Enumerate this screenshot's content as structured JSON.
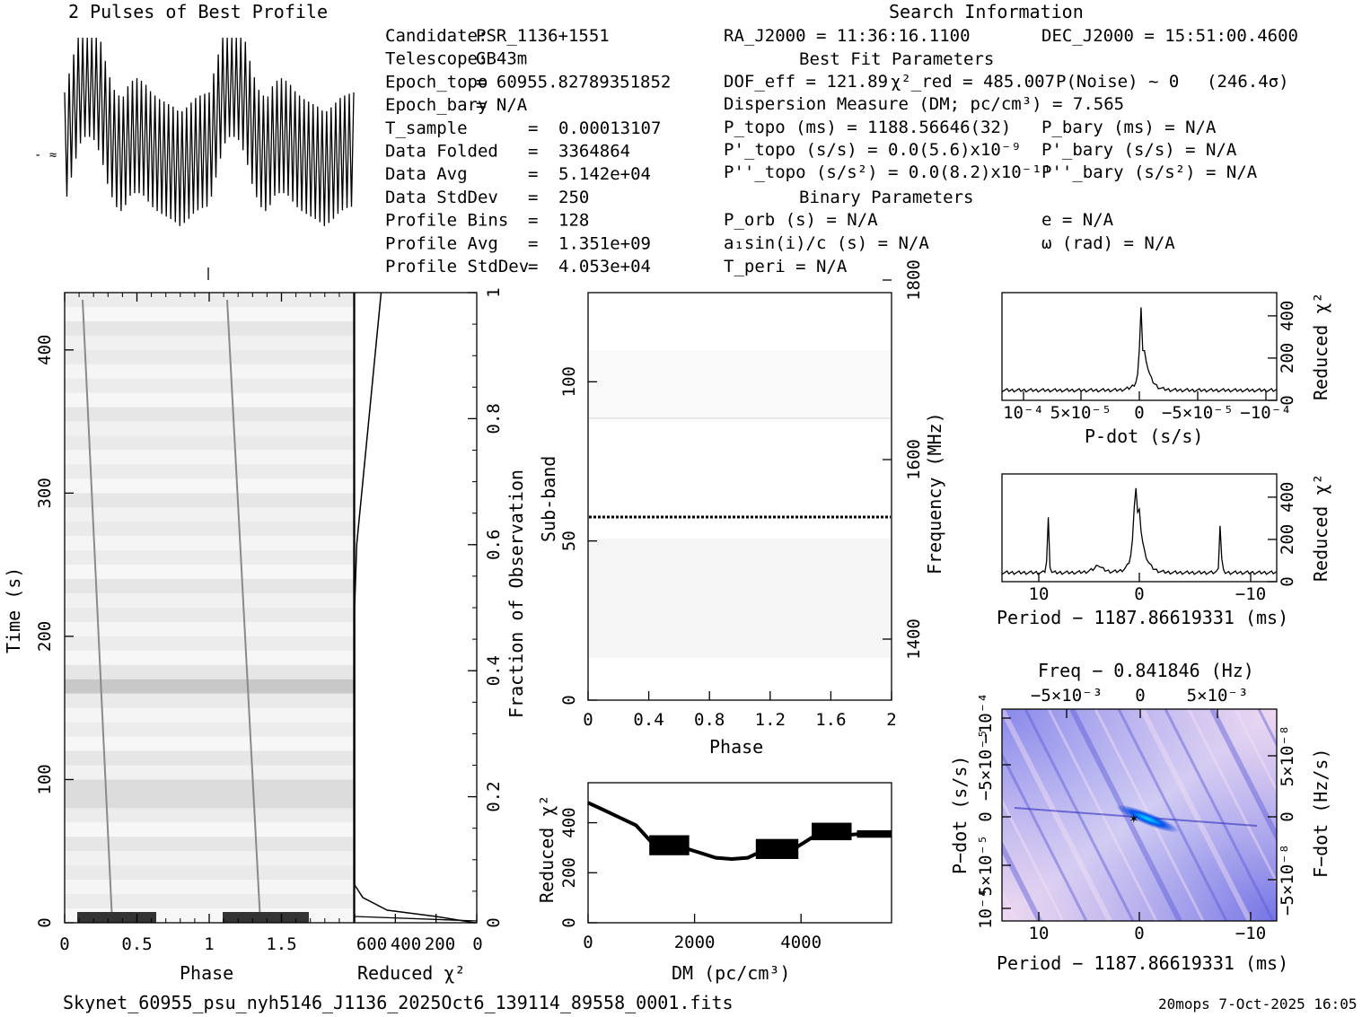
{
  "profile_title": "2 Pulses of Best Profile",
  "search_title": "Search Information",
  "left_info": [
    [
      "Candidate:",
      "PSR_1136+1551"
    ],
    [
      "Telescope:",
      "GB43m"
    ],
    [
      "Epoch_topo",
      "= 60955.82789351852"
    ],
    [
      "Epoch_bary",
      "= N/A"
    ],
    [
      "T_sample",
      "=",
      "0.00013107"
    ],
    [
      "Data Folded",
      "=",
      "3364864"
    ],
    [
      "Data Avg",
      "=",
      "5.142e+04"
    ],
    [
      "Data StdDev",
      "=",
      "250"
    ],
    [
      "Profile Bins",
      "=",
      "128"
    ],
    [
      "Profile Avg",
      "=",
      "1.351e+09"
    ],
    [
      "Profile StdDev",
      "=",
      "4.053e+04"
    ]
  ],
  "ra": "RA_J2000 = 11:36:16.1100",
  "dec": "DEC_J2000 = 15:51:00.4600",
  "best_fit_title": "Best Fit Parameters",
  "dof": "DOF_eff = 121.89",
  "chi_red": "χ²_red = 485.007",
  "pnoise": "P(Noise) ~ 0",
  "sigma": "(246.4σ)",
  "dm_line": "Dispersion Measure (DM; pc/cm³) = 7.565",
  "ptopo": "P_topo (ms) = 1188.56646(32)",
  "pbary": "P_bary (ms) = N/A",
  "pdtopo": "P'_topo (s/s) = 0.0(5.6)x10⁻⁹",
  "pdbary": "P'_bary (s/s) = N/A",
  "pddtopo": "P''_topo (s/s²) = 0.0(8.2)x10⁻¹¹",
  "pddbary": "P''_bary (s/s²) = N/A",
  "binary_title": "Binary Parameters",
  "porb": "P_orb (s) = N/A",
  "ecc": "e = N/A",
  "a1": "a₁sin(i)/c (s) = N/A",
  "omega": "ω (rad) = N/A",
  "tperi": "T_peri = N/A",
  "filename": "Skynet_60955_psu_nyh5146_J1136_2025Oct6_139114_89558_0001.fits",
  "footer_right": "20mops  7-Oct-2025 16:05",
  "chart_data": [
    {
      "type": "line",
      "title": "2 Pulses of Best Profile",
      "description_of_series": "pulse profile over 2 phase cycles",
      "x": [
        0,
        0.05,
        0.1,
        0.15,
        0.2,
        0.25,
        0.3,
        0.35,
        0.4,
        0.45,
        0.5,
        0.55,
        0.6,
        0.65,
        0.7,
        0.75,
        0.8,
        0.85,
        0.9,
        0.95,
        1.0
      ],
      "values": [
        0.45,
        0.6,
        0.75,
        0.8,
        0.78,
        0.7,
        0.55,
        0.45,
        0.42,
        0.5,
        0.52,
        0.5,
        0.45,
        0.42,
        0.4,
        0.38,
        0.35,
        0.38,
        0.42,
        0.44,
        0.45
      ]
    },
    {
      "type": "heatmap",
      "title": "Time vs Phase",
      "xlabel": "Phase",
      "ylabel": "Time (s)",
      "xlim": [
        0,
        2
      ],
      "ylim": [
        0,
        440
      ],
      "x_ticks": [
        "0",
        "0.5",
        "1",
        "1.5"
      ],
      "y_ticks": [
        "0",
        "100",
        "200",
        "300",
        "400"
      ]
    },
    {
      "type": "line",
      "title": "Reduced chi2 vs Fraction of Observation",
      "xlabel": "Reduced χ²",
      "ylabel": "Fraction of Observation",
      "x_ticks": [
        "600",
        "400",
        "200",
        "0"
      ],
      "y_ticks": [
        "0",
        "0.2",
        "0.4",
        "0.6",
        "0.8",
        "1"
      ],
      "xlim": [
        600,
        0
      ],
      "ylim": [
        0,
        1
      ],
      "fraction": [
        0.0,
        0.01,
        0.02,
        0.04,
        0.06,
        0.08,
        0.1,
        0.15,
        0.2,
        0.3,
        0.4,
        0.5,
        0.6,
        0.7,
        0.8,
        0.9,
        1.0
      ],
      "chi2": [
        10,
        200,
        440,
        560,
        600,
        640,
        650,
        660,
        660,
        650,
        640,
        620,
        590,
        560,
        530,
        500,
        470
      ]
    },
    {
      "type": "heatmap",
      "title": "Sub-band vs Phase",
      "xlabel": "Phase",
      "ylabel": "Sub-band",
      "right_label": "Frequency (MHz)",
      "xlim": [
        0,
        2
      ],
      "ylim": [
        0,
        128
      ],
      "x_ticks": [
        "0",
        "0.4",
        "0.8",
        "1.2",
        "1.6",
        "2"
      ],
      "y_ticks": [
        "0",
        "50",
        "100"
      ],
      "right_ticks": [
        "1400",
        "1600",
        "1800"
      ]
    },
    {
      "type": "line",
      "title": "Reduced chi2 vs DM",
      "xlabel": "DM (pc/cm³)",
      "ylabel": "Reduced χ²",
      "xlim": [
        0,
        5700
      ],
      "ylim": [
        0,
        560
      ],
      "x_ticks": [
        "0",
        "2000",
        "4000"
      ],
      "y_ticks": [
        "0",
        "200",
        "400"
      ],
      "dm": [
        0,
        300,
        600,
        900,
        1200,
        1500,
        1800,
        2100,
        2400,
        2700,
        3000,
        3300,
        3600,
        3900,
        4200,
        4500,
        4800,
        5100,
        5400,
        5700
      ],
      "chi2": [
        480,
        450,
        420,
        390,
        320,
        310,
        300,
        280,
        260,
        255,
        260,
        290,
        295,
        300,
        340,
        350,
        350,
        355,
        355,
        360
      ]
    },
    {
      "type": "line",
      "title": "Reduced chi2 vs P-dot",
      "xlabel": "P-dot (s/s)",
      "ylabel": "Reduced χ²",
      "x_ticks": [
        "10⁻⁴",
        "5×10⁻⁵",
        "0",
        "−5×10⁻⁵",
        "−10⁻⁴"
      ],
      "y_ticks": [
        "0",
        "200",
        "400"
      ],
      "ylim": [
        0,
        510
      ]
    },
    {
      "type": "line",
      "title": "Reduced chi2 vs Period",
      "xlabel": "Period − 1187.86619331 (ms)",
      "ylabel": "Reduced χ²",
      "x_ticks": [
        "10",
        "0",
        "−10"
      ],
      "y_ticks": [
        "0",
        "200",
        "400"
      ],
      "ylim": [
        0,
        510
      ]
    },
    {
      "type": "heatmap",
      "title": "P-dot vs Period",
      "top_label": "Freq − 0.841846 (Hz)",
      "top_ticks": [
        "−5×10⁻³",
        "0",
        "5×10⁻³"
      ],
      "xlabel": "Period − 1187.86619331 (ms)",
      "ylabel": "P−dot (s/s)",
      "right_label": "F−dot (Hz/s)",
      "x_ticks": [
        "10",
        "0",
        "−10"
      ],
      "y_ticks": [
        "10⁻⁴",
        "5×10⁻⁵",
        "0",
        "−5×10⁻⁵",
        "−10⁻⁴"
      ],
      "right_ticks": [
        "−5×10⁻⁸",
        "0",
        "5×10⁻⁸"
      ]
    }
  ]
}
